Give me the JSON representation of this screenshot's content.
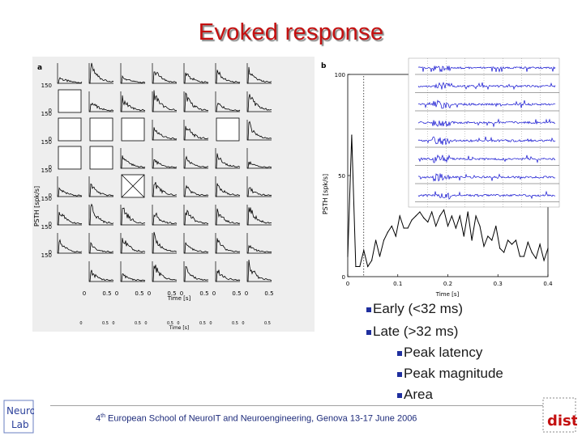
{
  "slide": {
    "title": "Evoked response",
    "bullets": {
      "early": "Early (<32 ms)",
      "late": "Late (>32 ms)",
      "peak_latency": "Peak latency",
      "peak_magnitude": "Peak magnitude",
      "area": "Area"
    },
    "footer": {
      "ordinal": "4",
      "ordinal_suffix": "th",
      "text": " European School of NeuroIT and Neuroengineering, Genova 13-17 June 2006"
    },
    "logo_left": "Neuro Lab",
    "logo_right": "dist"
  },
  "panel_a": {
    "label": "a",
    "ylabel": "PSTH [spk/s]",
    "xlabel": "Time [s]",
    "xticks": [
      "0",
      "0.5",
      "0",
      "0.5",
      "0",
      "0.5",
      "0",
      "0.5",
      "0",
      "0.5",
      "0",
      "0.5"
    ],
    "yticks_top": "150",
    "yticks_bottom": "0",
    "grid": "6x7"
  },
  "chart_data": {
    "type": "line",
    "title": "",
    "panel_label": "b",
    "xlabel": "Time [s]",
    "ylabel": "PSTH [spk/s]",
    "xlim": [
      0,
      0.4
    ],
    "ylim": [
      0,
      100
    ],
    "xticks": [
      "0",
      "0.1",
      "0.2",
      "0.3",
      "0.4"
    ],
    "yticks": [
      "0",
      "50",
      "100"
    ],
    "threshold_line_x": 0.032,
    "series": [
      {
        "values_x": [
          0,
          0.008,
          0.016,
          0.024,
          0.032,
          0.04,
          0.048,
          0.056,
          0.064,
          0.072,
          0.08,
          0.088,
          0.096,
          0.104,
          0.112,
          0.12,
          0.128,
          0.136,
          0.144,
          0.152,
          0.16,
          0.168,
          0.176,
          0.184,
          0.192,
          0.2,
          0.208,
          0.216,
          0.224,
          0.232,
          0.24,
          0.248,
          0.256,
          0.264,
          0.272,
          0.28,
          0.288,
          0.296,
          0.304,
          0.312,
          0.32,
          0.328,
          0.336,
          0.344,
          0.352,
          0.36,
          0.368,
          0.376,
          0.384,
          0.392,
          0.4
        ],
        "values_y": [
          10,
          70,
          5,
          5,
          13,
          5,
          8,
          18,
          10,
          18,
          22,
          25,
          20,
          30,
          24,
          24,
          28,
          30,
          32,
          29,
          27,
          32,
          25,
          30,
          33,
          25,
          30,
          24,
          30,
          20,
          32,
          18,
          30,
          25,
          15,
          20,
          18,
          25,
          14,
          12,
          18,
          16,
          18,
          10,
          10,
          17,
          12,
          9,
          16,
          8,
          14
        ]
      }
    ]
  }
}
